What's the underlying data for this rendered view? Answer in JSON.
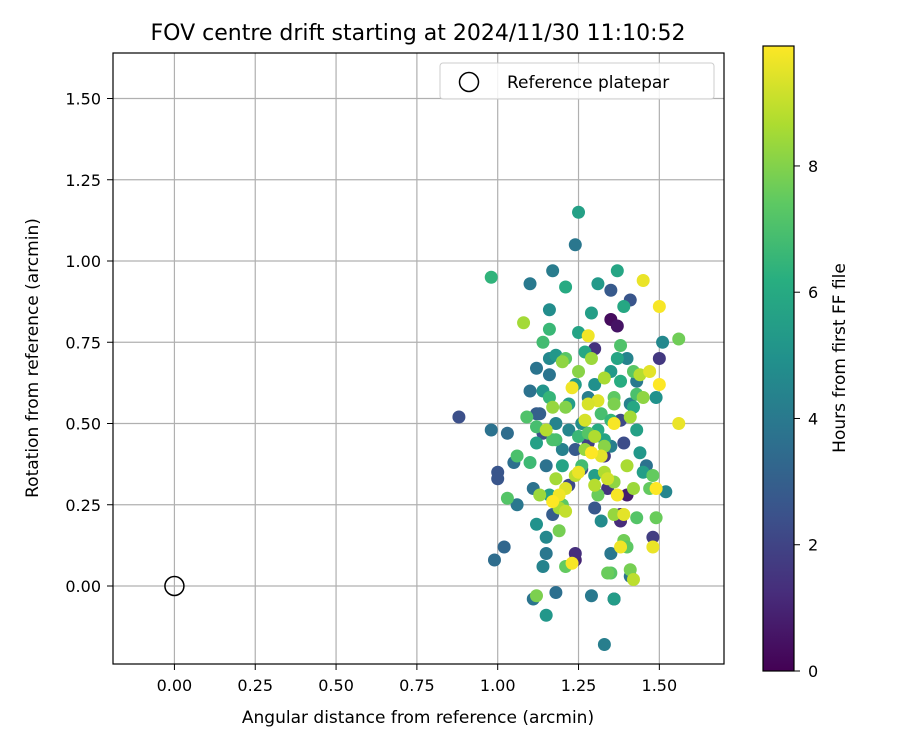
{
  "chart_data": {
    "type": "scatter",
    "title": "FOV centre drift starting at 2024/11/30 11:10:52",
    "xlabel": "Angular distance from reference (arcmin)",
    "ylabel": "Rotation from reference (arcmin)",
    "xlim": [
      -0.19,
      1.7
    ],
    "ylim": [
      -0.24,
      1.64
    ],
    "xticks": [
      0.0,
      0.25,
      0.5,
      0.75,
      1.0,
      1.25,
      1.5
    ],
    "xtick_labels": [
      "0.00",
      "0.25",
      "0.50",
      "0.75",
      "1.00",
      "1.25",
      "1.50"
    ],
    "yticks": [
      0.0,
      0.25,
      0.5,
      0.75,
      1.0,
      1.25,
      1.5
    ],
    "ytick_labels": [
      "0.00",
      "0.25",
      "0.50",
      "0.75",
      "1.00",
      "1.25",
      "1.50"
    ],
    "grid": true,
    "legend": {
      "position": "top-right",
      "entries": [
        "Reference platepar"
      ]
    },
    "reference_point": {
      "x": 0.0,
      "y": 0.0,
      "label": "Reference platepar"
    },
    "colorbar": {
      "label": "Hours from first FF file",
      "colormap": "viridis",
      "range": [
        0,
        9.9
      ],
      "ticks": [
        0,
        2,
        4,
        6,
        8
      ],
      "tick_labels": [
        "0",
        "2",
        "4",
        "6",
        "8"
      ]
    },
    "points": [
      {
        "x": 1.35,
        "y": 0.82,
        "c": 0.3
      },
      {
        "x": 1.37,
        "y": 0.8,
        "c": 0.5
      },
      {
        "x": 1.4,
        "y": 0.28,
        "c": 0.8
      },
      {
        "x": 1.38,
        "y": 0.22,
        "c": 1.0
      },
      {
        "x": 1.36,
        "y": -0.04,
        "c": 1.2
      },
      {
        "x": 1.24,
        "y": 0.08,
        "c": 1.0
      },
      {
        "x": 1.34,
        "y": 0.3,
        "c": 1.5
      },
      {
        "x": 1.5,
        "y": 0.7,
        "c": 1.6
      },
      {
        "x": 1.48,
        "y": 0.15,
        "c": 1.8
      },
      {
        "x": 1.3,
        "y": 0.73,
        "c": 1.4
      },
      {
        "x": 1.24,
        "y": 0.1,
        "c": 1.3
      },
      {
        "x": 1.28,
        "y": 0.44,
        "c": 1.9
      },
      {
        "x": 1.38,
        "y": 0.2,
        "c": 1.2
      },
      {
        "x": 1.33,
        "y": 0.4,
        "c": 1.7
      },
      {
        "x": 0.88,
        "y": 0.52,
        "c": 2.4
      },
      {
        "x": 1.0,
        "y": 0.35,
        "c": 2.6
      },
      {
        "x": 1.0,
        "y": 0.33,
        "c": 2.6
      },
      {
        "x": 1.35,
        "y": 0.91,
        "c": 2.8
      },
      {
        "x": 1.41,
        "y": 0.88,
        "c": 2.6
      },
      {
        "x": 1.12,
        "y": 0.53,
        "c": 2.9
      },
      {
        "x": 1.39,
        "y": 0.44,
        "c": 2.3
      },
      {
        "x": 1.22,
        "y": 0.31,
        "c": 2.2
      },
      {
        "x": 1.26,
        "y": 0.36,
        "c": 2.5
      },
      {
        "x": 1.17,
        "y": 0.22,
        "c": 2.9
      },
      {
        "x": 1.14,
        "y": 0.47,
        "c": 2.4
      },
      {
        "x": 1.3,
        "y": 0.24,
        "c": 2.7
      },
      {
        "x": 1.13,
        "y": 0.53,
        "c": 3.0
      },
      {
        "x": 1.38,
        "y": 0.51,
        "c": 2.2
      },
      {
        "x": 1.24,
        "y": 0.42,
        "c": 2.8
      },
      {
        "x": 1.02,
        "y": 0.12,
        "c": 3.3
      },
      {
        "x": 0.99,
        "y": 0.08,
        "c": 3.5
      },
      {
        "x": 0.98,
        "y": 0.48,
        "c": 3.7
      },
      {
        "x": 1.03,
        "y": 0.47,
        "c": 3.5
      },
      {
        "x": 1.05,
        "y": 0.38,
        "c": 3.6
      },
      {
        "x": 1.06,
        "y": 0.25,
        "c": 3.9
      },
      {
        "x": 1.11,
        "y": 0.3,
        "c": 3.7
      },
      {
        "x": 1.12,
        "y": 0.67,
        "c": 3.8
      },
      {
        "x": 1.1,
        "y": 0.6,
        "c": 3.7
      },
      {
        "x": 1.16,
        "y": 0.65,
        "c": 3.8
      },
      {
        "x": 1.15,
        "y": 0.37,
        "c": 3.7
      },
      {
        "x": 1.15,
        "y": 0.1,
        "c": 3.9
      },
      {
        "x": 1.18,
        "y": -0.02,
        "c": 3.6
      },
      {
        "x": 1.11,
        "y": -0.04,
        "c": 3.8
      },
      {
        "x": 1.24,
        "y": 1.05,
        "c": 3.9
      },
      {
        "x": 1.1,
        "y": 0.93,
        "c": 4.0
      },
      {
        "x": 1.17,
        "y": 0.97,
        "c": 4.1
      },
      {
        "x": 1.33,
        "y": -0.18,
        "c": 4.2
      },
      {
        "x": 1.29,
        "y": -0.03,
        "c": 4.0
      },
      {
        "x": 1.35,
        "y": 0.1,
        "c": 3.9
      },
      {
        "x": 1.41,
        "y": 0.03,
        "c": 3.8
      },
      {
        "x": 1.46,
        "y": 0.37,
        "c": 3.7
      },
      {
        "x": 1.43,
        "y": 0.63,
        "c": 4.0
      },
      {
        "x": 1.41,
        "y": 0.56,
        "c": 4.3
      },
      {
        "x": 1.52,
        "y": 0.29,
        "c": 4.5
      },
      {
        "x": 1.51,
        "y": 0.75,
        "c": 4.6
      },
      {
        "x": 1.28,
        "y": 0.58,
        "c": 4.2
      },
      {
        "x": 1.14,
        "y": 0.06,
        "c": 4.4
      },
      {
        "x": 1.15,
        "y": 0.15,
        "c": 4.6
      },
      {
        "x": 1.2,
        "y": 0.42,
        "c": 4.3
      },
      {
        "x": 1.22,
        "y": 0.48,
        "c": 4.5
      },
      {
        "x": 1.18,
        "y": 0.5,
        "c": 4.4
      },
      {
        "x": 1.32,
        "y": 0.2,
        "c": 4.7
      },
      {
        "x": 1.16,
        "y": 0.85,
        "c": 4.8
      },
      {
        "x": 1.35,
        "y": 0.43,
        "c": 4.2
      },
      {
        "x": 1.16,
        "y": 0.7,
        "c": 4.6
      },
      {
        "x": 1.4,
        "y": 0.7,
        "c": 4.4
      },
      {
        "x": 1.3,
        "y": 0.62,
        "c": 4.9
      },
      {
        "x": 1.26,
        "y": 0.5,
        "c": 4.7
      },
      {
        "x": 1.49,
        "y": 0.58,
        "c": 5.0
      },
      {
        "x": 1.15,
        "y": -0.09,
        "c": 5.2
      },
      {
        "x": 1.36,
        "y": -0.04,
        "c": 5.4
      },
      {
        "x": 1.12,
        "y": 0.19,
        "c": 5.0
      },
      {
        "x": 1.14,
        "y": 0.6,
        "c": 5.1
      },
      {
        "x": 1.25,
        "y": 1.15,
        "c": 5.6
      },
      {
        "x": 1.37,
        "y": 0.97,
        "c": 5.8
      },
      {
        "x": 1.31,
        "y": 0.93,
        "c": 5.3
      },
      {
        "x": 1.29,
        "y": 0.84,
        "c": 5.5
      },
      {
        "x": 1.39,
        "y": 0.86,
        "c": 5.9
      },
      {
        "x": 1.21,
        "y": 0.92,
        "c": 6.0
      },
      {
        "x": 1.25,
        "y": 0.78,
        "c": 5.7
      },
      {
        "x": 1.22,
        "y": 0.56,
        "c": 5.4
      },
      {
        "x": 1.12,
        "y": 0.44,
        "c": 5.6
      },
      {
        "x": 1.18,
        "y": 0.71,
        "c": 5.2
      },
      {
        "x": 1.3,
        "y": 0.34,
        "c": 5.5
      },
      {
        "x": 1.33,
        "y": 0.45,
        "c": 5.7
      },
      {
        "x": 1.27,
        "y": 0.72,
        "c": 5.9
      },
      {
        "x": 1.35,
        "y": 0.66,
        "c": 5.3
      },
      {
        "x": 1.37,
        "y": 0.7,
        "c": 5.8
      },
      {
        "x": 1.43,
        "y": 0.48,
        "c": 5.6
      },
      {
        "x": 1.44,
        "y": 0.41,
        "c": 5.2
      },
      {
        "x": 1.45,
        "y": 0.35,
        "c": 5.5
      },
      {
        "x": 1.42,
        "y": 0.55,
        "c": 5.9
      },
      {
        "x": 1.24,
        "y": 0.62,
        "c": 5.4
      },
      {
        "x": 1.2,
        "y": 0.37,
        "c": 5.7
      },
      {
        "x": 1.16,
        "y": 0.28,
        "c": 5.6
      },
      {
        "x": 1.38,
        "y": 0.63,
        "c": 6.1
      },
      {
        "x": 1.31,
        "y": 0.48,
        "c": 6.0
      },
      {
        "x": 0.98,
        "y": 0.95,
        "c": 6.4
      },
      {
        "x": 1.16,
        "y": 0.79,
        "c": 6.6
      },
      {
        "x": 1.14,
        "y": 0.75,
        "c": 6.8
      },
      {
        "x": 1.16,
        "y": 0.58,
        "c": 6.5
      },
      {
        "x": 1.18,
        "y": 0.45,
        "c": 6.9
      },
      {
        "x": 1.1,
        "y": 0.38,
        "c": 6.7
      },
      {
        "x": 1.06,
        "y": 0.4,
        "c": 7.0
      },
      {
        "x": 1.03,
        "y": 0.27,
        "c": 7.2
      },
      {
        "x": 1.12,
        "y": 0.49,
        "c": 6.9
      },
      {
        "x": 1.09,
        "y": 0.52,
        "c": 7.1
      },
      {
        "x": 1.21,
        "y": 0.7,
        "c": 7.3
      },
      {
        "x": 1.17,
        "y": 0.45,
        "c": 7.0
      },
      {
        "x": 1.25,
        "y": 0.46,
        "c": 6.6
      },
      {
        "x": 1.26,
        "y": 0.37,
        "c": 6.8
      },
      {
        "x": 1.28,
        "y": 0.47,
        "c": 7.2
      },
      {
        "x": 1.32,
        "y": 0.53,
        "c": 6.9
      },
      {
        "x": 1.36,
        "y": 0.58,
        "c": 7.4
      },
      {
        "x": 1.35,
        "y": 0.51,
        "c": 6.5
      },
      {
        "x": 1.38,
        "y": 0.74,
        "c": 7.1
      },
      {
        "x": 1.42,
        "y": 0.66,
        "c": 7.3
      },
      {
        "x": 1.43,
        "y": 0.59,
        "c": 7.0
      },
      {
        "x": 1.48,
        "y": 0.34,
        "c": 7.5
      },
      {
        "x": 1.49,
        "y": 0.21,
        "c": 7.6
      },
      {
        "x": 1.43,
        "y": 0.21,
        "c": 7.2
      },
      {
        "x": 1.39,
        "y": 0.14,
        "c": 7.7
      },
      {
        "x": 1.4,
        "y": 0.12,
        "c": 7.4
      },
      {
        "x": 1.41,
        "y": 0.05,
        "c": 7.8
      },
      {
        "x": 1.35,
        "y": 0.04,
        "c": 7.3
      },
      {
        "x": 1.34,
        "y": 0.04,
        "c": 7.6
      },
      {
        "x": 1.21,
        "y": 0.06,
        "c": 7.5
      },
      {
        "x": 1.19,
        "y": 0.17,
        "c": 7.8
      },
      {
        "x": 1.12,
        "y": -0.03,
        "c": 7.9
      },
      {
        "x": 1.2,
        "y": 0.25,
        "c": 7.4
      },
      {
        "x": 1.56,
        "y": 0.76,
        "c": 7.7
      },
      {
        "x": 1.47,
        "y": 0.3,
        "c": 7.5
      },
      {
        "x": 1.36,
        "y": 0.56,
        "c": 7.9
      },
      {
        "x": 1.31,
        "y": 0.28,
        "c": 7.6
      },
      {
        "x": 1.08,
        "y": 0.81,
        "c": 8.5
      },
      {
        "x": 1.2,
        "y": 0.69,
        "c": 8.2
      },
      {
        "x": 1.29,
        "y": 0.7,
        "c": 8.4
      },
      {
        "x": 1.33,
        "y": 0.64,
        "c": 8.6
      },
      {
        "x": 1.25,
        "y": 0.66,
        "c": 8.1
      },
      {
        "x": 1.17,
        "y": 0.55,
        "c": 8.3
      },
      {
        "x": 1.21,
        "y": 0.55,
        "c": 8.0
      },
      {
        "x": 1.15,
        "y": 0.48,
        "c": 8.8
      },
      {
        "x": 1.13,
        "y": 0.28,
        "c": 8.4
      },
      {
        "x": 1.18,
        "y": 0.33,
        "c": 8.5
      },
      {
        "x": 1.24,
        "y": 0.34,
        "c": 8.9
      },
      {
        "x": 1.27,
        "y": 0.42,
        "c": 8.3
      },
      {
        "x": 1.33,
        "y": 0.35,
        "c": 8.7
      },
      {
        "x": 1.36,
        "y": 0.32,
        "c": 8.2
      },
      {
        "x": 1.4,
        "y": 0.37,
        "c": 8.6
      },
      {
        "x": 1.42,
        "y": 0.3,
        "c": 8.4
      },
      {
        "x": 1.44,
        "y": 0.65,
        "c": 8.8
      },
      {
        "x": 1.41,
        "y": 0.52,
        "c": 8.5
      },
      {
        "x": 1.33,
        "y": 0.43,
        "c": 8.1
      },
      {
        "x": 1.3,
        "y": 0.46,
        "c": 8.7
      },
      {
        "x": 1.19,
        "y": 0.24,
        "c": 8.6
      },
      {
        "x": 1.42,
        "y": 0.02,
        "c": 8.9
      },
      {
        "x": 1.21,
        "y": 0.23,
        "c": 9.0
      },
      {
        "x": 1.36,
        "y": 0.22,
        "c": 8.3
      },
      {
        "x": 1.3,
        "y": 0.31,
        "c": 8.8
      },
      {
        "x": 1.45,
        "y": 0.58,
        "c": 8.2
      },
      {
        "x": 1.45,
        "y": 0.94,
        "c": 9.6
      },
      {
        "x": 1.5,
        "y": 0.86,
        "c": 9.8
      },
      {
        "x": 1.28,
        "y": 0.77,
        "c": 9.7
      },
      {
        "x": 1.47,
        "y": 0.66,
        "c": 9.5
      },
      {
        "x": 1.5,
        "y": 0.62,
        "c": 9.9
      },
      {
        "x": 1.56,
        "y": 0.5,
        "c": 9.6
      },
      {
        "x": 1.31,
        "y": 0.57,
        "c": 9.4
      },
      {
        "x": 1.23,
        "y": 0.61,
        "c": 9.7
      },
      {
        "x": 1.27,
        "y": 0.51,
        "c": 9.3
      },
      {
        "x": 1.36,
        "y": 0.5,
        "c": 9.8
      },
      {
        "x": 1.32,
        "y": 0.4,
        "c": 9.5
      },
      {
        "x": 1.29,
        "y": 0.41,
        "c": 9.9
      },
      {
        "x": 1.25,
        "y": 0.35,
        "c": 9.6
      },
      {
        "x": 1.34,
        "y": 0.33,
        "c": 9.2
      },
      {
        "x": 1.37,
        "y": 0.28,
        "c": 9.8
      },
      {
        "x": 1.21,
        "y": 0.3,
        "c": 9.4
      },
      {
        "x": 1.19,
        "y": 0.28,
        "c": 9.7
      },
      {
        "x": 1.17,
        "y": 0.26,
        "c": 9.9
      },
      {
        "x": 1.39,
        "y": 0.22,
        "c": 9.5
      },
      {
        "x": 1.38,
        "y": 0.12,
        "c": 9.7
      },
      {
        "x": 1.48,
        "y": 0.12,
        "c": 9.6
      },
      {
        "x": 1.49,
        "y": 0.3,
        "c": 9.9
      },
      {
        "x": 1.23,
        "y": 0.07,
        "c": 9.8
      },
      {
        "x": 1.28,
        "y": 0.56,
        "c": 9.3
      }
    ]
  }
}
